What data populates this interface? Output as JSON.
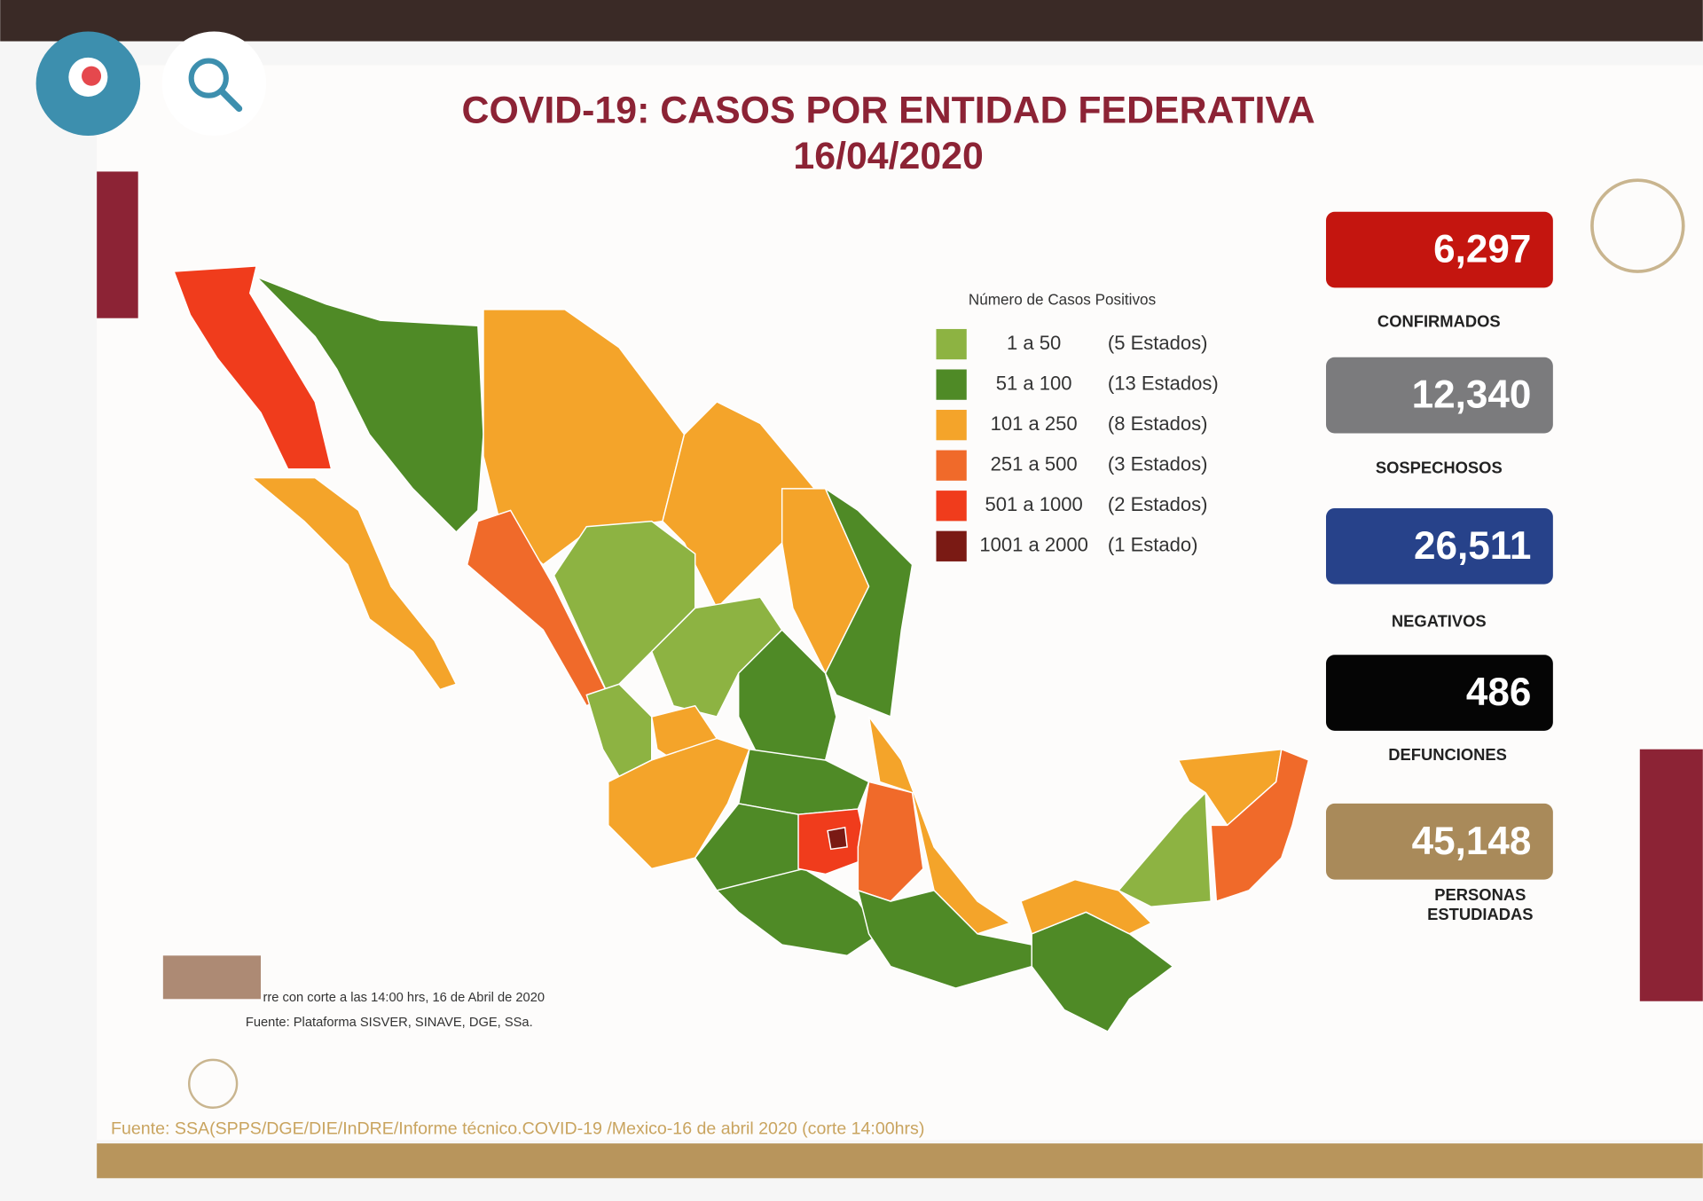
{
  "header": {
    "title": "COVID-19: CASOS POR ENTIDAD FEDERATIVA",
    "date": "16/04/2020"
  },
  "legend": {
    "title": "Número de Casos Positivos",
    "items": [
      {
        "range": "1 a 50",
        "count": "(5 Estados)",
        "color": "#8db342"
      },
      {
        "range": "51 a 100",
        "count": "(13 Estados)",
        "color": "#4f8a26"
      },
      {
        "range": "101 a 250",
        "count": "(8 Estados)",
        "color": "#f4a42a"
      },
      {
        "range": "251 a 500",
        "count": "(3 Estados)",
        "color": "#f06a2a"
      },
      {
        "range": "501 a 1000",
        "count": "(2 Estados)",
        "color": "#f03c1c"
      },
      {
        "range": "1001 a 2000",
        "count": "(1 Estado)",
        "color": "#7a1a14"
      }
    ]
  },
  "stats": [
    {
      "value": "6,297",
      "label": [
        "CONFIRMADOS"
      ],
      "color": "#c4150f"
    },
    {
      "value": "12,340",
      "label": [
        "SOSPECHOSOS"
      ],
      "color": "#7b7b7d"
    },
    {
      "value": "26,511",
      "label": [
        "NEGATIVOS"
      ],
      "color": "#27428a"
    },
    {
      "value": "486",
      "label": [
        "DEFUNCIONES"
      ],
      "color": "#050505"
    },
    {
      "value": "45,148",
      "label": [
        "PERSONAS",
        "ESTUDIADAS"
      ],
      "color": "#a98a5a"
    }
  ],
  "notes": [
    "rre con corte a las 14:00 hrs, 16 de Abril de 2020",
    "Fuente: Plataforma SISVER, SINAVE, DGE, SSa."
  ],
  "footer": {
    "source": "Fuente: SSA(SPPS/DGE/DIE/InDRE/Informe técnico.COVID-19 /Mexico-16 de abril 2020 (corte 14:00hrs)"
  }
}
